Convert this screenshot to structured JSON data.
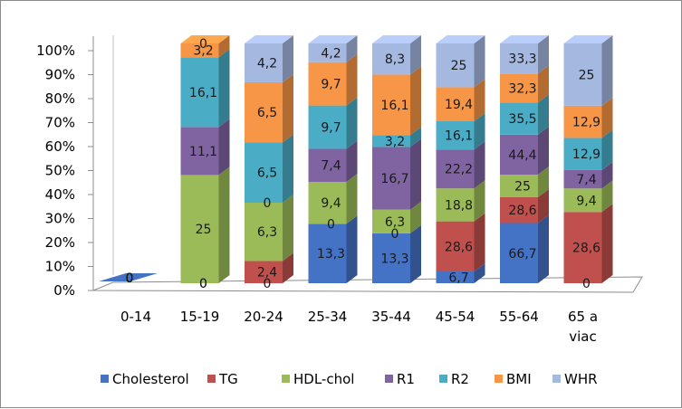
{
  "chart_data": {
    "type": "bar",
    "stacked": "100%",
    "three_d": true,
    "categories": [
      "0-14",
      "15-19",
      "20-24",
      "25-34",
      "35-44",
      "45-54",
      "55-64",
      "65 a viac"
    ],
    "yticks": [
      "0%",
      "10%",
      "20%",
      "30%",
      "40%",
      "50%",
      "60%",
      "70%",
      "80%",
      "90%",
      "100%"
    ],
    "ylim": [
      0,
      100
    ],
    "legend_position": "bottom",
    "series": [
      {
        "name": "Cholesterol",
        "color": "#4472c4",
        "values": [
          0,
          0,
          0,
          13.3,
          13.3,
          6.7,
          66.7,
          0
        ]
      },
      {
        "name": "TG",
        "color": "#c0504d",
        "values": [
          0,
          0,
          2.4,
          0,
          0,
          28.6,
          28.6,
          28.6
        ]
      },
      {
        "name": "HDL-chol",
        "color": "#9bbb59",
        "values": [
          0,
          25,
          6.3,
          9.4,
          6.3,
          18.8,
          25,
          9.4
        ]
      },
      {
        "name": "R1",
        "color": "#8064a2",
        "values": [
          0,
          11.1,
          0,
          7.4,
          16.7,
          22.2,
          44.4,
          7.4
        ]
      },
      {
        "name": "R2",
        "color": "#4bacc6",
        "values": [
          0,
          16.1,
          6.5,
          9.7,
          3.2,
          16.1,
          35.5,
          12.9
        ]
      },
      {
        "name": "BMI",
        "color": "#f79646",
        "values": [
          0,
          3.2,
          6.5,
          9.7,
          16.1,
          19.4,
          32.3,
          12.9
        ]
      },
      {
        "name": "WHR",
        "color": "#a5b8e0",
        "values": [
          0,
          0,
          4.2,
          4.2,
          8.3,
          25,
          33.3,
          25
        ]
      }
    ]
  }
}
